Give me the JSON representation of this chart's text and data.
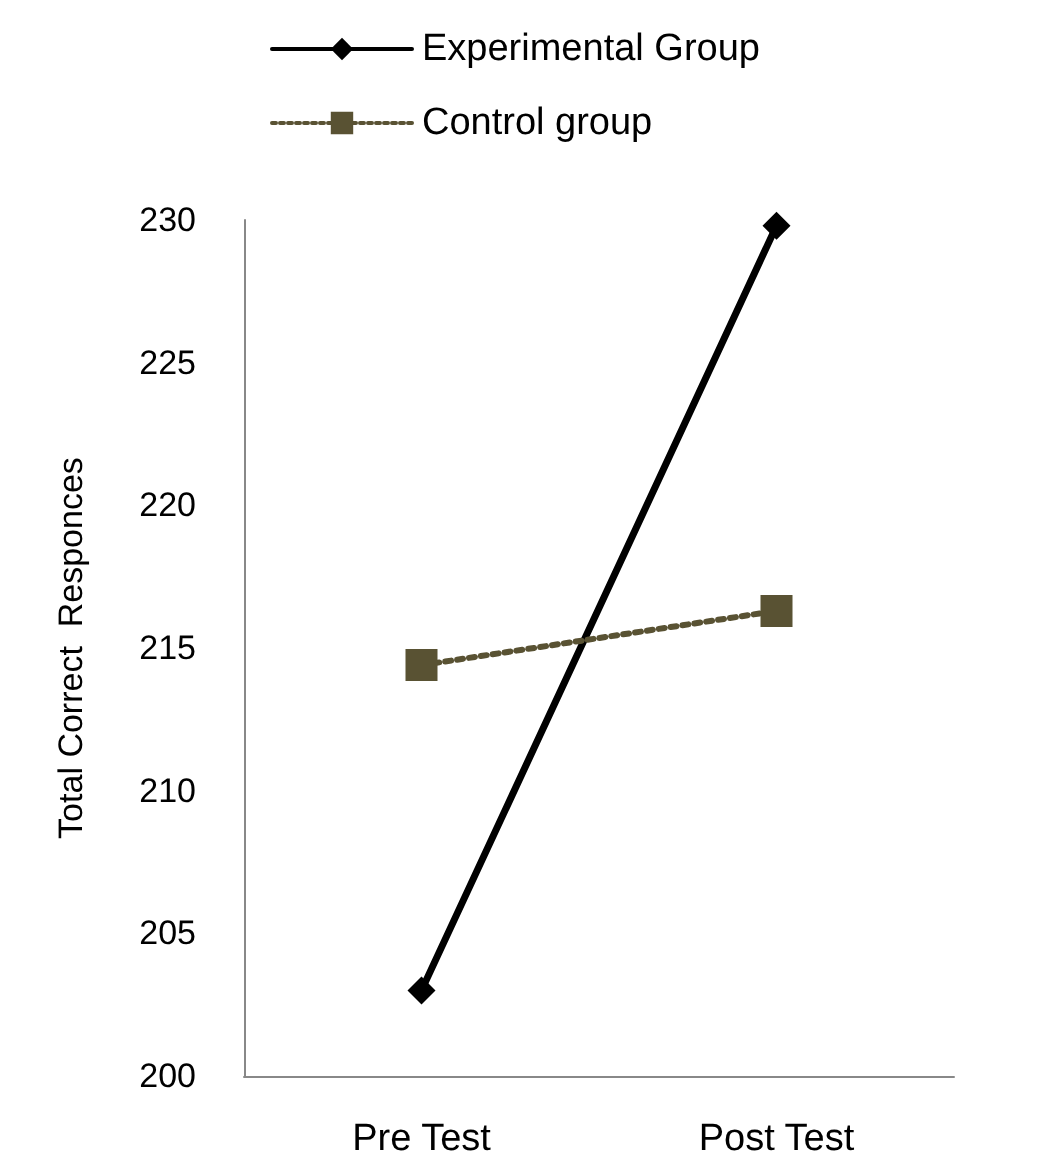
{
  "chart_data": {
    "type": "line",
    "ylabel": "Total Correct  Responces",
    "categories": [
      "Pre Test",
      "Post Test"
    ],
    "series": [
      {
        "name": "Experimental Group",
        "color": "#000000",
        "values": [
          203.0,
          229.8
        ],
        "marker": "diamond",
        "line_style": "solid"
      },
      {
        "name": "Control group",
        "color": "#595233",
        "values": [
          214.4,
          216.3
        ],
        "marker": "square",
        "line_style": "dotted"
      }
    ],
    "ylim": [
      200,
      230
    ],
    "yticks": [
      200,
      205,
      210,
      215,
      220,
      225,
      230
    ],
    "grid": false,
    "legend": "top left"
  }
}
